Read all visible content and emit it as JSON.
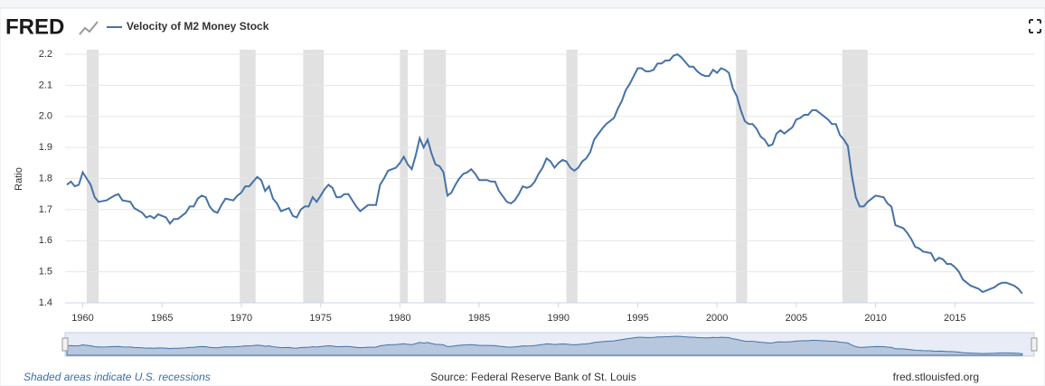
{
  "chart_data": {
    "type": "line",
    "logo": "FRED",
    "title": "Velocity of M2 Money Stock",
    "ylabel": "Ratio",
    "footnote": "Shaded areas indicate U.S. recessions",
    "source": "Source: Federal Reserve Bank of St. Louis",
    "site": "fred.stlouisfed.org",
    "grid": true,
    "xlim": [
      1959,
      2020
    ],
    "ylim": [
      1.4,
      2.2
    ],
    "xticks": [
      1960,
      1965,
      1970,
      1975,
      1980,
      1985,
      1990,
      1995,
      2000,
      2005,
      2010,
      2015
    ],
    "yticks": [
      1.4,
      1.5,
      1.6,
      1.7,
      1.8,
      1.9,
      {
        "value": 2,
        "label": "2.0"
      },
      2.1,
      2.2
    ],
    "recessions": [
      [
        1960.25,
        1961.0
      ],
      [
        1969.9,
        1970.9
      ],
      [
        1973.9,
        1975.2
      ],
      [
        1980.0,
        1980.5
      ],
      [
        1981.5,
        1982.9
      ],
      [
        1990.5,
        1991.2
      ],
      [
        2001.2,
        2001.9
      ],
      [
        2007.9,
        2009.5
      ]
    ],
    "x": [
      1959.0,
      1959.25,
      1959.5,
      1959.75,
      1960.0,
      1960.25,
      1960.5,
      1960.75,
      1961.0,
      1961.5,
      1962.0,
      1962.25,
      1962.5,
      1963.0,
      1963.25,
      1963.75,
      1964.0,
      1964.25,
      1964.5,
      1964.75,
      1965.0,
      1965.25,
      1965.5,
      1965.75,
      1966.0,
      1966.5,
      1966.75,
      1967.0,
      1967.25,
      1967.5,
      1967.75,
      1968.0,
      1968.25,
      1968.5,
      1968.75,
      1969.0,
      1969.5,
      1969.75,
      1970.0,
      1970.25,
      1970.5,
      1970.75,
      1971.0,
      1971.25,
      1971.5,
      1971.75,
      1972.0,
      1972.25,
      1972.5,
      1972.75,
      1973.0,
      1973.25,
      1973.5,
      1973.75,
      1974.0,
      1974.25,
      1974.5,
      1974.75,
      1975.0,
      1975.25,
      1975.5,
      1975.75,
      1976.0,
      1976.25,
      1976.5,
      1976.75,
      1977.0,
      1977.25,
      1977.5,
      1977.75,
      1978.0,
      1978.5,
      1978.75,
      1979.0,
      1979.25,
      1979.5,
      1979.75,
      1980.0,
      1980.25,
      1980.5,
      1980.75,
      1981.0,
      1981.25,
      1981.5,
      1981.75,
      1982.0,
      1982.25,
      1982.5,
      1982.75,
      1983.0,
      1983.25,
      1983.5,
      1983.75,
      1984.0,
      1984.25,
      1984.5,
      1984.75,
      1985.0,
      1985.5,
      1985.75,
      1986.0,
      1986.25,
      1986.75,
      1987.0,
      1987.25,
      1987.5,
      1987.75,
      1988.0,
      1988.25,
      1988.5,
      1988.75,
      1989.0,
      1989.25,
      1989.5,
      1989.75,
      1990.0,
      1990.25,
      1990.5,
      1990.75,
      1991.0,
      1991.25,
      1991.5,
      1991.75,
      1992.0,
      1992.25,
      1992.75,
      1993.0,
      1993.5,
      1993.75,
      1994.0,
      1994.25,
      1994.5,
      1994.75,
      1995.0,
      1995.25,
      1995.5,
      1995.75,
      1996.0,
      1996.25,
      1996.5,
      1996.75,
      1997.0,
      1997.25,
      1997.5,
      1997.75,
      1998.0,
      1998.25,
      1998.5,
      1998.75,
      1999.0,
      1999.25,
      1999.5,
      1999.75,
      2000.0,
      2000.25,
      2000.5,
      2000.75,
      2001.0,
      2001.25,
      2001.5,
      2001.75,
      2002.0,
      2002.25,
      2002.5,
      2002.75,
      2003.0,
      2003.25,
      2003.5,
      2003.75,
      2004.0,
      2004.25,
      2004.5,
      2004.75,
      2005.0,
      2005.25,
      2005.5,
      2005.75,
      2006.0,
      2006.25,
      2006.5,
      2006.75,
      2007.0,
      2007.25,
      2007.5,
      2007.75,
      2008.0,
      2008.25,
      2008.5,
      2008.75,
      2009.0,
      2009.25,
      2009.5,
      2009.75,
      2010.0,
      2010.5,
      2010.75,
      2011.0,
      2011.25,
      2011.75,
      2012.0,
      2012.25,
      2012.5,
      2012.75,
      2013.0,
      2013.5,
      2013.75,
      2014.0,
      2014.25,
      2014.5,
      2014.75,
      2015.0,
      2015.25,
      2015.5,
      2015.75,
      2016.0,
      2016.5,
      2016.75,
      2017.0,
      2017.5,
      2017.75,
      2018.0,
      2018.25,
      2018.5,
      2018.75,
      2019.0,
      2019.25
    ],
    "series": [
      {
        "name": "Velocity of M2 Money Stock",
        "color": "#4572a7",
        "values": [
          1.78,
          1.79,
          1.775,
          1.78,
          1.82,
          1.8,
          1.78,
          1.74,
          1.725,
          1.73,
          1.745,
          1.75,
          1.73,
          1.725,
          1.705,
          1.69,
          1.675,
          1.68,
          1.672,
          1.685,
          1.68,
          1.675,
          1.655,
          1.67,
          1.67,
          1.69,
          1.71,
          1.71,
          1.735,
          1.745,
          1.74,
          1.71,
          1.695,
          1.69,
          1.715,
          1.735,
          1.73,
          1.745,
          1.755,
          1.775,
          1.775,
          1.79,
          1.805,
          1.795,
          1.76,
          1.775,
          1.735,
          1.72,
          1.695,
          1.7,
          1.705,
          1.68,
          1.675,
          1.7,
          1.71,
          1.71,
          1.74,
          1.725,
          1.745,
          1.765,
          1.78,
          1.77,
          1.74,
          1.74,
          1.75,
          1.75,
          1.73,
          1.71,
          1.695,
          1.705,
          1.715,
          1.715,
          1.78,
          1.8,
          1.825,
          1.83,
          1.835,
          1.85,
          1.87,
          1.845,
          1.83,
          1.875,
          1.93,
          1.9,
          1.925,
          1.88,
          1.845,
          1.84,
          1.82,
          1.745,
          1.755,
          1.78,
          1.8,
          1.815,
          1.82,
          1.83,
          1.815,
          1.795,
          1.795,
          1.79,
          1.79,
          1.76,
          1.725,
          1.72,
          1.73,
          1.75,
          1.775,
          1.77,
          1.775,
          1.79,
          1.815,
          1.835,
          1.865,
          1.855,
          1.835,
          1.85,
          1.86,
          1.855,
          1.835,
          1.825,
          1.835,
          1.855,
          1.865,
          1.885,
          1.925,
          1.96,
          1.975,
          1.995,
          2.025,
          2.05,
          2.085,
          2.105,
          2.13,
          2.155,
          2.155,
          2.145,
          2.145,
          2.15,
          2.17,
          2.17,
          2.18,
          2.18,
          2.195,
          2.2,
          2.19,
          2.175,
          2.16,
          2.16,
          2.145,
          2.135,
          2.13,
          2.13,
          2.15,
          2.14,
          2.155,
          2.15,
          2.14,
          2.09,
          2.065,
          2.02,
          1.985,
          1.975,
          1.975,
          1.96,
          1.935,
          1.925,
          1.905,
          1.91,
          1.945,
          1.955,
          1.945,
          1.955,
          1.965,
          1.99,
          1.995,
          2.005,
          2.005,
          2.02,
          2.02,
          2.01,
          2.0,
          1.99,
          1.975,
          1.975,
          1.94,
          1.925,
          1.905,
          1.81,
          1.74,
          1.71,
          1.71,
          1.725,
          1.735,
          1.745,
          1.74,
          1.72,
          1.71,
          1.65,
          1.64,
          1.625,
          1.605,
          1.58,
          1.575,
          1.565,
          1.56,
          1.535,
          1.545,
          1.54,
          1.525,
          1.525,
          1.515,
          1.5,
          1.475,
          1.465,
          1.455,
          1.445,
          1.435,
          1.44,
          1.45,
          1.46,
          1.465,
          1.465,
          1.46,
          1.455,
          1.445,
          1.43
        ]
      }
    ]
  }
}
